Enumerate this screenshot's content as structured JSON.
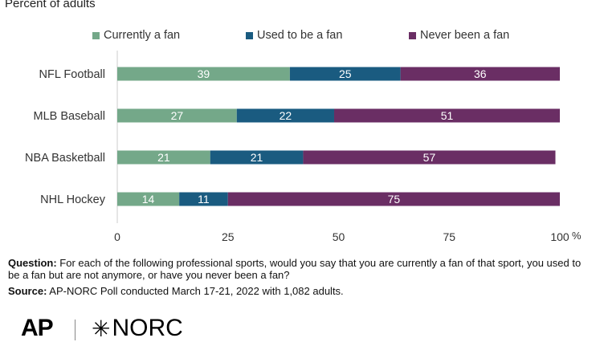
{
  "subtitle": "Percent of adults",
  "colors": {
    "currently": "#74a889",
    "used": "#1a5b80",
    "never": "#6a2e64"
  },
  "chart_data": {
    "type": "bar",
    "orientation": "horizontal",
    "stacked": true,
    "categories": [
      "NFL Football",
      "MLB Baseball",
      "NBA Basketball",
      "NHL Hockey"
    ],
    "series": [
      {
        "name": "Currently a fan",
        "values": [
          39,
          27,
          21,
          14
        ],
        "color": "#74a889"
      },
      {
        "name": "Used to be a fan",
        "values": [
          25,
          22,
          21,
          11
        ],
        "color": "#1a5b80"
      },
      {
        "name": "Never been a fan",
        "values": [
          36,
          51,
          57,
          75
        ],
        "color": "#6a2e64"
      }
    ],
    "xlim": [
      0,
      100
    ],
    "xticks": [
      "0",
      "25",
      "50",
      "75",
      "100"
    ],
    "x_unit": "%",
    "legend_position": "top",
    "grid": false
  },
  "footnote": {
    "question_label": "Question:",
    "question_text": " For each of the following professional sports, would you say that you are currently a fan of that sport, you used to be a fan but are not anymore, or have you never been a fan?",
    "source_label": "Source:",
    "source_text": " AP-NORC Poll conducted March 17-21, 2022 with 1,082 adults."
  },
  "logos": {
    "ap": "AP",
    "norc_mark": "✳",
    "norc": "NORC"
  }
}
